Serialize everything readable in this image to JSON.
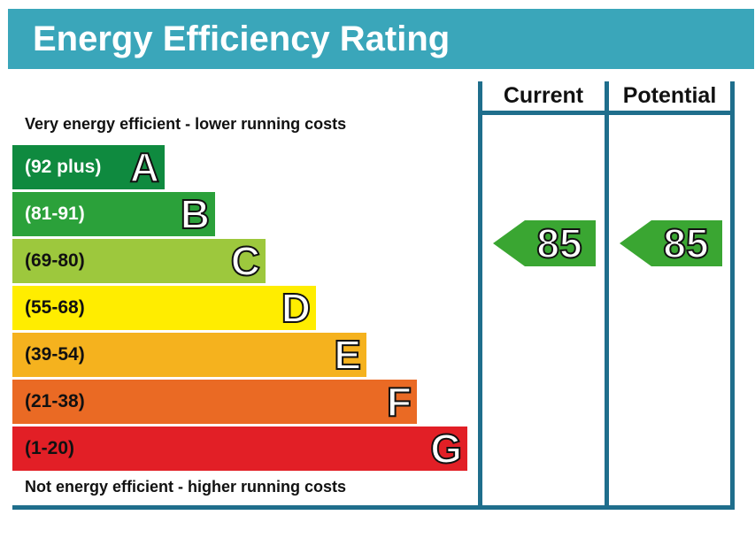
{
  "title": "Energy Efficiency Rating",
  "caption_top": "Very energy efficient - lower running costs",
  "caption_bottom": "Not energy efficient - higher running costs",
  "colors": {
    "header": "#3aa6ba",
    "border": "#1f6e8c",
    "arrow": "#3aa632"
  },
  "chart_data": {
    "type": "bar",
    "categories": [
      "A",
      "B",
      "C",
      "D",
      "E",
      "F",
      "G"
    ],
    "ranges": [
      "(92 plus)",
      "(81-91)",
      "(69-80)",
      "(55-68)",
      "(39-54)",
      "(21-38)",
      "(1-20)"
    ],
    "band_colors": [
      "#0f8a3f",
      "#2ba13a",
      "#9dc83d",
      "#ffed00",
      "#f5b21e",
      "#ea6a24",
      "#e21f26"
    ],
    "range_text_colors": [
      "#ffffff",
      "#ffffff",
      "#111111",
      "#111111",
      "#111111",
      "#111111",
      "#111111"
    ],
    "columns": [
      "Current",
      "Potential"
    ],
    "current": {
      "value": 85,
      "band": "B"
    },
    "potential": {
      "value": 85,
      "band": "B"
    }
  }
}
